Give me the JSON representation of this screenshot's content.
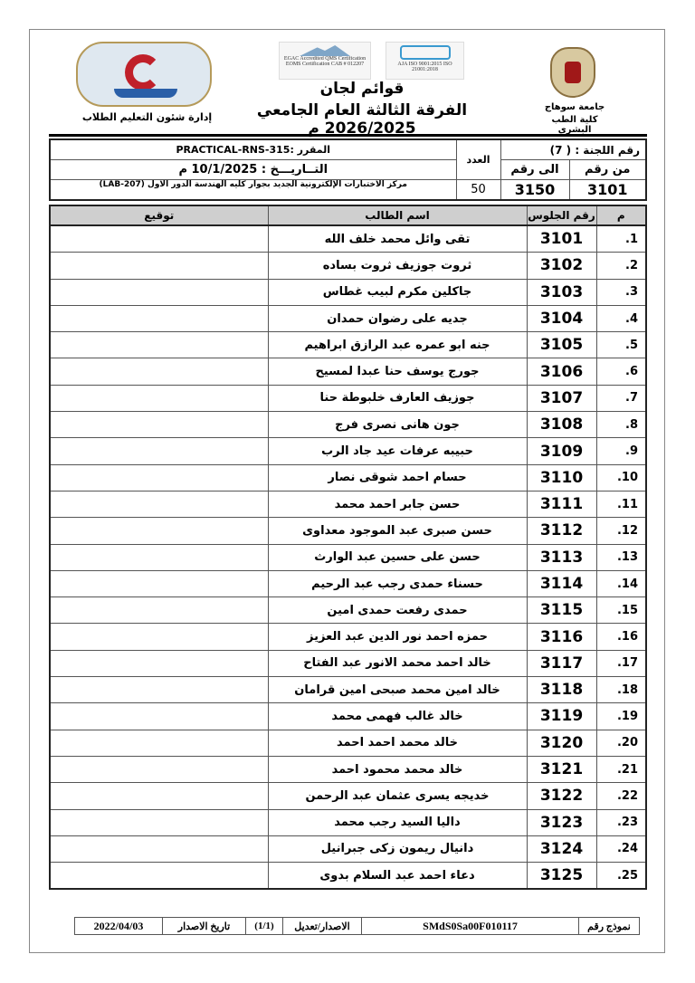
{
  "header": {
    "title": "قوائم لجان",
    "subtitle": "الفرقة الثالثة العام الجامعي 2026/2025 م",
    "left_caption": "إدارة شئون التعليم الطلاب",
    "right_caption_line1": "جامعة سوهاج",
    "right_caption_line2": "كلية الطب البشرى",
    "cert_logo_1": "EGAC Accredited QMS Certification EOMS Certification CAB # 012207",
    "cert_logo_2": "AJA ISO 9001:2015 ISO 21001:2018"
  },
  "info": {
    "committee_label": "رقم اللجنة :",
    "committee_value": "( 7)",
    "from_label": "من رقم",
    "to_label": "الى رقم",
    "from_value": "3101",
    "to_value": "3150",
    "count_label": "العدد",
    "count_value": "50",
    "course": "المقرر :PRACTICAL-RNS-315",
    "date": "التــاريـــخ : 10/1/2025 م",
    "location": "مركز الاختبارات الإلكترونية الجديد بجوار كليه الهندسة الدور الاول (LAB-207)"
  },
  "table": {
    "headers": [
      "م",
      "رقم الجلوس",
      "اسم الطالب",
      "توقيع"
    ],
    "rows": [
      {
        "n": "1.",
        "seat": "3101",
        "name": "تقى وائل محمد خلف الله"
      },
      {
        "n": "2.",
        "seat": "3102",
        "name": "ثروت جوزيف ثروت بساده"
      },
      {
        "n": "3.",
        "seat": "3103",
        "name": "جاكلين مكرم لبيب غطاس"
      },
      {
        "n": "4.",
        "seat": "3104",
        "name": "جديه على رضوان حمدان"
      },
      {
        "n": "5.",
        "seat": "3105",
        "name": "جنه ابو عمره عبد الرازق ابراهيم"
      },
      {
        "n": "6.",
        "seat": "3106",
        "name": "جورج يوسف حنا عبدا لمسيح"
      },
      {
        "n": "7.",
        "seat": "3107",
        "name": "جوزيف العارف خلبوطة حنا"
      },
      {
        "n": "8.",
        "seat": "3108",
        "name": "جون هانى نصرى فرج"
      },
      {
        "n": "9.",
        "seat": "3109",
        "name": "حبيبه عرفات عيد جاد الرب"
      },
      {
        "n": "10.",
        "seat": "3110",
        "name": "حسام احمد شوقى نصار"
      },
      {
        "n": "11.",
        "seat": "3111",
        "name": "حسن جابر احمد محمد"
      },
      {
        "n": "12.",
        "seat": "3112",
        "name": "حسن صبرى عبد الموجود معداوى"
      },
      {
        "n": "13.",
        "seat": "3113",
        "name": "حسن على حسين عبد الوارث"
      },
      {
        "n": "14.",
        "seat": "3114",
        "name": "حسناء حمدى رجب عبد الرحيم"
      },
      {
        "n": "15.",
        "seat": "3115",
        "name": "حمدى رفعت حمدى امين"
      },
      {
        "n": "16.",
        "seat": "3116",
        "name": "حمزه احمد نور الدين عبد العزيز"
      },
      {
        "n": "17.",
        "seat": "3117",
        "name": "خالد احمد محمد الانور عبد الفتاح"
      },
      {
        "n": "18.",
        "seat": "3118",
        "name": "خالد امين محمد صبحى امين قرامان"
      },
      {
        "n": "19.",
        "seat": "3119",
        "name": "خالد غالب فهمى محمد"
      },
      {
        "n": "20.",
        "seat": "3120",
        "name": "خالد محمد احمد احمد"
      },
      {
        "n": "21.",
        "seat": "3121",
        "name": "خالد محمد محمود احمد"
      },
      {
        "n": "22.",
        "seat": "3122",
        "name": "خديجه يسرى عثمان عبد الرحمن"
      },
      {
        "n": "23.",
        "seat": "3123",
        "name": "داليا السيد رجب محمد"
      },
      {
        "n": "24.",
        "seat": "3124",
        "name": "دانيال ريمون زكى جبرانيل"
      },
      {
        "n": "25.",
        "seat": "3125",
        "name": "دعاء احمد عبد السلام بدوى"
      }
    ]
  },
  "footer": {
    "form_label": "نموذج رقم",
    "form_code": "SMdS0Sa00F010117",
    "version_label": "الاصدار/تعديل",
    "version_value": "(1/1)",
    "issue_label": "تاريخ الاصدار",
    "issue_date": "2022/04/03"
  }
}
